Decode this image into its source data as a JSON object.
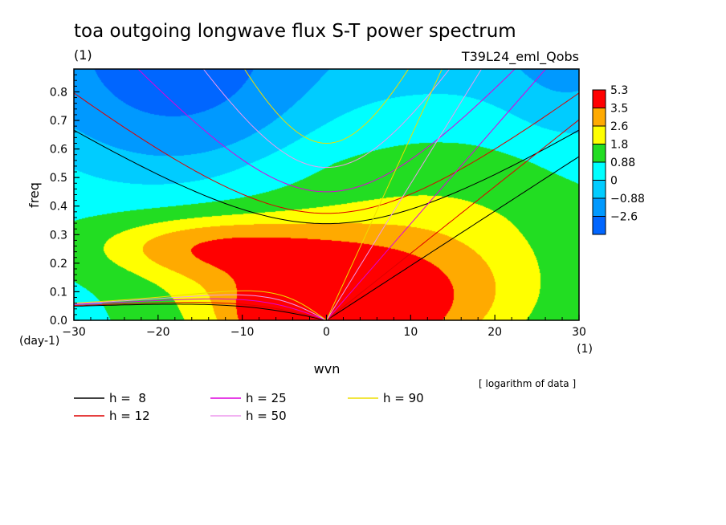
{
  "chart_data": {
    "type": "heatmap",
    "title": "toa outgoing longwave flux S-T power spectrum",
    "title_unit": "(1)",
    "run_label": "T39L24_eml_Qobs",
    "xlabel": "wvn",
    "ylabel": "freq",
    "x_unit": "(1)",
    "y_unit": "(day-1)",
    "xlim": [
      -30,
      30
    ],
    "ylim": [
      0,
      0.88
    ],
    "x_ticks": [
      -30,
      -20,
      -10,
      0,
      10,
      20,
      30
    ],
    "y_ticks": [
      0.0,
      0.1,
      0.2,
      0.3,
      0.4,
      0.5,
      0.6,
      0.7,
      0.8
    ],
    "x_tick_labels": [
      "−30",
      "−20",
      "−10",
      "0",
      "10",
      "20",
      "30"
    ],
    "y_tick_labels": [
      "0.0",
      "0.1",
      "0.2",
      "0.3",
      "0.4",
      "0.5",
      "0.6",
      "0.7",
      "0.8"
    ],
    "colorbar": {
      "labels": [
        "5.3",
        "3.5",
        "2.6",
        "1.8",
        "0.88",
        "0",
        "−0.88",
        "−2.6"
      ],
      "colors": [
        "#ff0000",
        "#ffaa00",
        "#ffff00",
        "#22dd22",
        "#00ffff",
        "#00ccff",
        "#0099ff",
        "#0066ff"
      ]
    },
    "contour_levels": [
      -2.6,
      -0.88,
      0,
      0.88,
      1.8,
      2.6,
      3.5
    ],
    "level_colors": [
      "#0066ff",
      "#0099ff",
      "#00ccff",
      "#00ffff",
      "#22dd22",
      "#ffff00",
      "#ffaa00",
      "#ff0000"
    ],
    "dispersion_curves": [
      {
        "name": "h =  8",
        "h": 8,
        "color": "#000000"
      },
      {
        "name": "h = 12",
        "h": 12,
        "color": "#dd0000"
      },
      {
        "name": "h = 25",
        "h": 25,
        "color": "#dd00dd"
      },
      {
        "name": "h = 50",
        "h": 50,
        "color": "#ee99ee"
      },
      {
        "name": "h = 90",
        "h": 90,
        "color": "#eedd00"
      }
    ],
    "note": "[ logarithm of data ]"
  }
}
